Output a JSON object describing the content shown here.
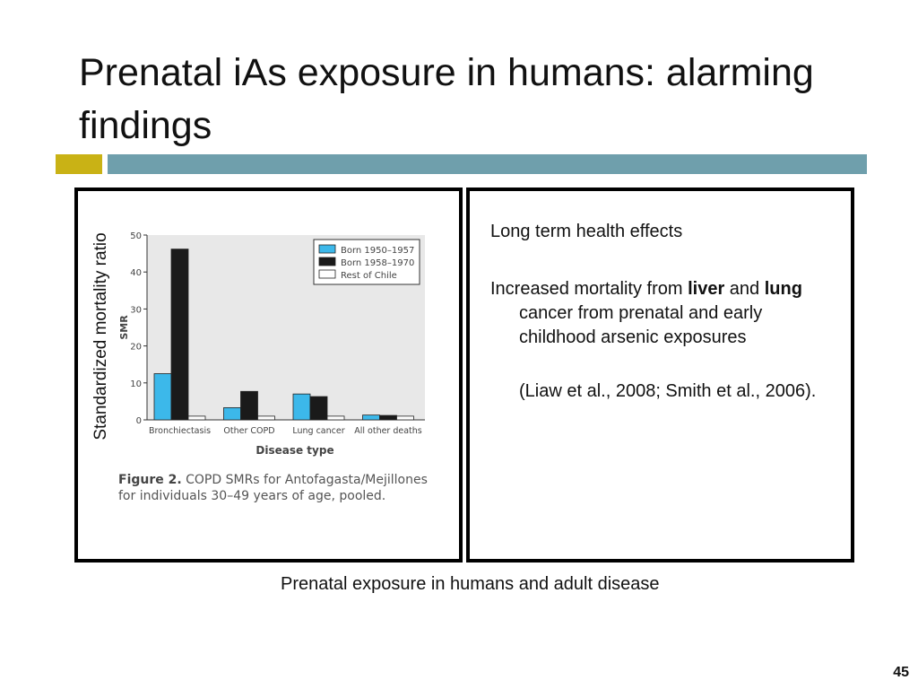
{
  "slide": {
    "title": "Prenatal iAs exposure in humans: alarming findings",
    "rotated_label": "Standardized mortality ratio",
    "figure_caption_bold": "Figure 2.",
    "figure_caption_text": " COPD SMRs for Antofagasta/Mejillones for individuals 30–49 years of age, pooled.",
    "right": {
      "p1": "Long term health effects",
      "p2_a": "Increased mortality from ",
      "p2_liver": "liver",
      "p2_b": " and ",
      "p2_lung": "lung",
      "p2_c": " cancer from prenatal and early childhood arsenic exposures",
      "p3": "(Liaw et al., 2008; Smith et al., 2006)."
    },
    "bottom_caption": "Prenatal exposure in humans and adult disease",
    "page_number": "45"
  },
  "colors": {
    "accent_gold": "#c9b215",
    "accent_teal": "#6f9fac",
    "series_1": "#3cb8ea",
    "series_2": "#1a1a1a",
    "series_3": "#ffffff",
    "plot_bg": "#e8e8e8"
  },
  "chart_data": {
    "type": "bar",
    "ylabel": "SMR",
    "xlabel": "Disease type",
    "ylim": [
      0,
      50
    ],
    "yticks": [
      0,
      10,
      20,
      30,
      40,
      50
    ],
    "categories": [
      "Bronchiectasis",
      "Other COPD",
      "Lung cancer",
      "All other deaths"
    ],
    "series": [
      {
        "name": "Born 1950–1957",
        "values": [
          12.5,
          3.3,
          7.0,
          1.3
        ]
      },
      {
        "name": "Born 1958–1970",
        "values": [
          46.2,
          7.7,
          6.3,
          1.2
        ]
      },
      {
        "name": "Rest of Chile",
        "values": [
          1.0,
          1.0,
          1.0,
          1.0
        ]
      }
    ],
    "legend_position": "top-right",
    "grid": false
  }
}
